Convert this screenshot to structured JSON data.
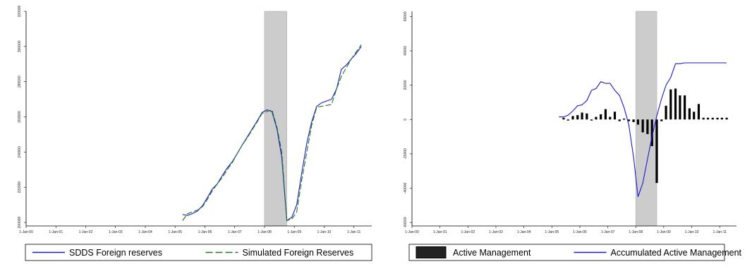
{
  "chart_data": [
    {
      "type": "line",
      "x_ticks": [
        "1-Jan-00",
        "1-Jan-01",
        "1-Jan-02",
        "1-Jan-03",
        "1-Jan-04",
        "1-Jan-05",
        "1-Jan-06",
        "1-Jan-07",
        "1-Jan-08",
        "1-Jan-09",
        "1-Jan-10",
        "1-Jan-11"
      ],
      "y_ticks": [
        "200000",
        "220000",
        "240000",
        "260000",
        "280000",
        "300000",
        "320000"
      ],
      "ylim": [
        198000,
        320000
      ],
      "xlim": [
        2000.0,
        2011.6
      ],
      "shade": [
        2008.0,
        2008.75
      ],
      "legend_position": "bottom",
      "series": [
        {
          "name": "SDDS Foreign reserves",
          "color": "#1a1acc",
          "style": "solid",
          "x": [
            2005.25,
            2005.42,
            2005.58,
            2005.75,
            2005.92,
            2006.08,
            2006.25,
            2006.42,
            2006.58,
            2006.75,
            2006.92,
            2007.08,
            2007.25,
            2007.42,
            2007.58,
            2007.75,
            2007.92,
            2008.08,
            2008.25,
            2008.42,
            2008.58,
            2008.75,
            2008.92,
            2009.08,
            2009.25,
            2009.42,
            2009.58,
            2009.75,
            2009.92,
            2010.08,
            2010.25,
            2010.42,
            2010.58,
            2010.75,
            2010.92,
            2011.08,
            2011.25
          ],
          "y": [
            204500,
            204000,
            205000,
            206500,
            209500,
            214000,
            219000,
            222000,
            226500,
            231000,
            234500,
            239000,
            244000,
            248500,
            253000,
            257500,
            262500,
            264000,
            263000,
            253000,
            237000,
            201000,
            203000,
            210000,
            228000,
            245000,
            257000,
            266000,
            268000,
            269000,
            270000,
            276000,
            287000,
            289500,
            293000,
            296000,
            300000
          ]
        },
        {
          "name": "Simulated Foreign Reserves",
          "color": "#1a7a1a",
          "style": "dashed",
          "x": [
            2005.25,
            2005.42,
            2005.58,
            2005.75,
            2005.92,
            2006.08,
            2006.25,
            2006.42,
            2006.58,
            2006.75,
            2006.92,
            2007.08,
            2007.25,
            2007.42,
            2007.58,
            2007.75,
            2007.92,
            2008.08,
            2008.25,
            2008.42,
            2008.58,
            2008.75,
            2008.92,
            2009.08,
            2009.25,
            2009.42,
            2009.58,
            2009.75,
            2009.92,
            2010.08,
            2010.25,
            2010.42,
            2010.58,
            2010.75,
            2010.92,
            2011.08,
            2011.25
          ],
          "y": [
            201000,
            205000,
            206000,
            207000,
            209000,
            213000,
            218000,
            222000,
            225500,
            230000,
            234000,
            239000,
            244000,
            248000,
            252500,
            257000,
            262000,
            263000,
            264000,
            254000,
            240000,
            201000,
            202000,
            206000,
            224000,
            240000,
            255000,
            265500,
            266000,
            266500,
            267000,
            276000,
            283000,
            288000,
            293000,
            297000,
            301000
          ]
        }
      ]
    },
    {
      "type": "bar",
      "x_ticks": [
        "1-Jan-00",
        "1-Jan-01",
        "1-Jan-02",
        "1-Jan-03",
        "1-Jan-04",
        "1-Jan-05",
        "1-Jan-06",
        "1-Jan-07",
        "1-Jan-08",
        "1-Jan-09",
        "1-Jan-10",
        "1-Jan-11"
      ],
      "y_ticks": [
        "-60000",
        "-40000",
        "-20000",
        "0",
        "20000",
        "40000",
        "60000"
      ],
      "ylim": [
        -62000,
        63000
      ],
      "xlim": [
        2000.0,
        2011.6
      ],
      "shade": [
        2008.0,
        2008.75
      ],
      "legend_position": "bottom",
      "series": [
        {
          "name": "Active Management",
          "color": "#000000",
          "style": "bar",
          "x": [
            2005.42,
            2005.58,
            2005.75,
            2005.92,
            2006.08,
            2006.25,
            2006.42,
            2006.58,
            2006.75,
            2006.92,
            2007.08,
            2007.25,
            2007.42,
            2007.58,
            2007.75,
            2007.92,
            2008.08,
            2008.25,
            2008.42,
            2008.58,
            2008.75,
            2008.92,
            2009.08,
            2009.25,
            2009.42,
            2009.58,
            2009.75,
            2009.92,
            2010.08,
            2010.25,
            2010.42,
            2010.58,
            2010.75,
            2010.92,
            2011.08,
            2011.25
          ],
          "y": [
            1000,
            -500,
            2000,
            2500,
            4000,
            3500,
            -500,
            1500,
            3000,
            6000,
            1500,
            4500,
            -1000,
            500,
            -1000,
            -1500,
            -3000,
            -7500,
            -8500,
            -15500,
            -37000,
            -1000,
            8000,
            17500,
            18000,
            14000,
            14000,
            6500,
            4500,
            9000,
            1000,
            1000,
            1000,
            1000,
            1000,
            1000
          ]
        },
        {
          "name": "Accumulated Active Management",
          "color": "#1a1acc",
          "style": "solid",
          "x": [
            2005.25,
            2005.42,
            2005.58,
            2005.75,
            2005.92,
            2006.08,
            2006.25,
            2006.42,
            2006.58,
            2006.75,
            2006.92,
            2007.08,
            2007.25,
            2007.42,
            2007.58,
            2007.75,
            2007.92,
            2008.08,
            2008.25,
            2008.42,
            2008.58,
            2008.75,
            2008.92,
            2009.08,
            2009.25,
            2009.42,
            2009.58,
            2009.75,
            2009.92,
            2010.08,
            2010.25,
            2010.42,
            2010.58,
            2010.75,
            2010.92,
            2011.08,
            2011.25
          ],
          "y": [
            1500,
            1500,
            2500,
            5000,
            8000,
            8500,
            11000,
            17000,
            18000,
            22000,
            21000,
            21000,
            17000,
            14000,
            7000,
            -3000,
            -22000,
            -45000,
            -37000,
            -23000,
            -10000,
            2000,
            12000,
            20000,
            24500,
            32500,
            32500,
            33000,
            33000,
            33000,
            33000,
            33000,
            33000,
            33000,
            33000,
            33000,
            33000
          ]
        }
      ]
    }
  ]
}
